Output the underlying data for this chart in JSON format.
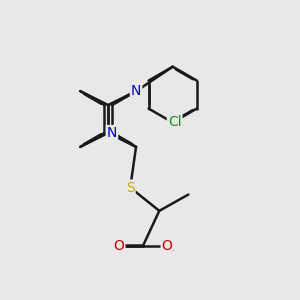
{
  "bg_color": "#e8e8e8",
  "bond_color": "#1a1a1a",
  "bond_width": 1.8,
  "atom_colors": {
    "N": "#0000cc",
    "S": "#ccaa00",
    "O": "#cc0000",
    "Cl": "#228b22",
    "C": "#1a1a1a"
  },
  "font_size": 10,
  "label_font_size": 10
}
